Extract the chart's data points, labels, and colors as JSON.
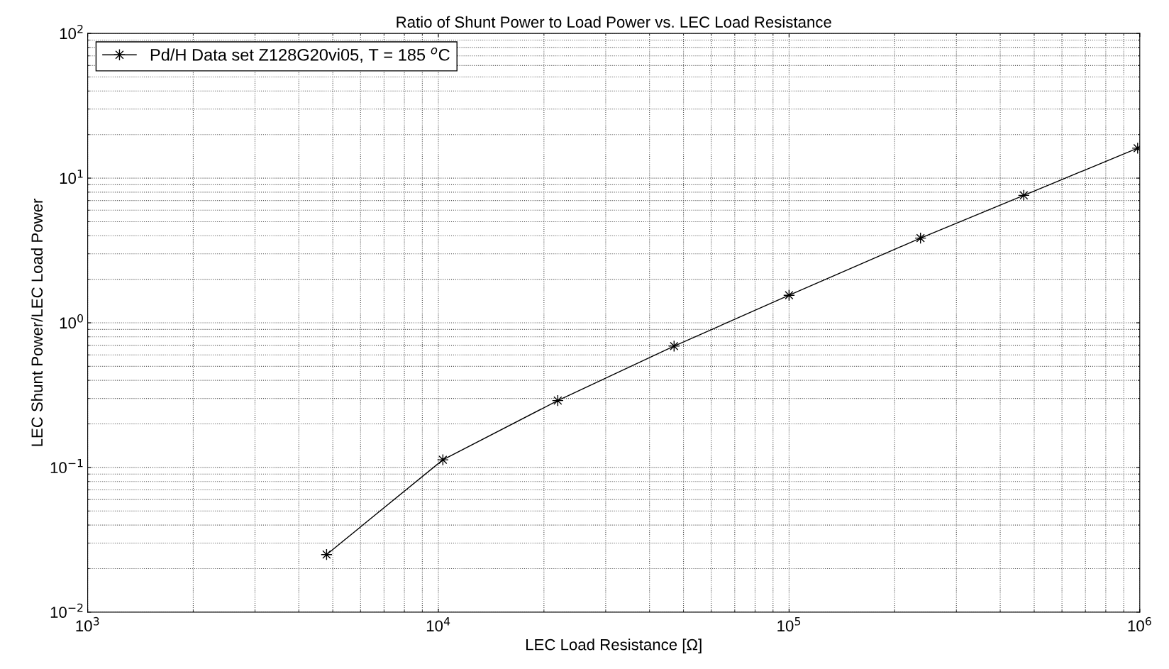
{
  "chart_data": {
    "type": "line",
    "title": "Ratio of Shunt Power to Load Power vs. LEC Load Resistance",
    "xlabel": "LEC Load Resistance [Ω]",
    "ylabel": "LEC Shunt Power/LEC Load Power",
    "x": [
      4800,
      10300,
      21900,
      47000,
      100000,
      237000,
      467000,
      986000
    ],
    "series": [
      {
        "name": "Pd/H Data set Z128G20vi05, T = 185 $^{o}$C",
        "color": "#000000",
        "values": [
          0.025,
          0.113,
          0.29,
          0.69,
          1.55,
          3.85,
          7.6,
          16.1
        ]
      }
    ],
    "log": "xy",
    "xlim": [
      1000,
      1000000
    ],
    "ylim": [
      0.01,
      100
    ],
    "xticks": [
      {
        "value": 1000,
        "label": "10$^{3}$"
      },
      {
        "value": 10000,
        "label": "10$^{4}$"
      },
      {
        "value": 100000,
        "label": "10$^{5}$"
      },
      {
        "value": 1000000,
        "label": "10$^{6}$"
      }
    ],
    "yticks": [
      {
        "value": 0.01,
        "label": "10$^{−2}$"
      },
      {
        "value": 0.1,
        "label": "10$^{−1}$"
      },
      {
        "value": 1,
        "label": "10$^{0}$"
      },
      {
        "value": 10,
        "label": "10$^{1}$"
      },
      {
        "value": 100,
        "label": "10$^{2}$"
      }
    ],
    "grid": true,
    "legend": "top left",
    "marker": "star",
    "line_style": "solid"
  }
}
